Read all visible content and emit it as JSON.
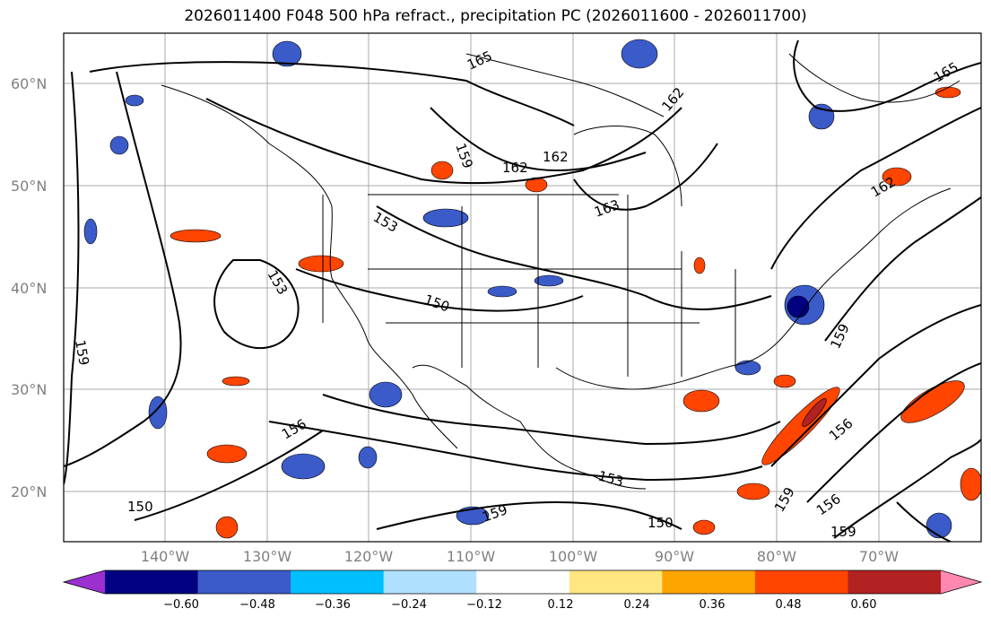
{
  "title": "2026011400 F048 500 hPa refract., precipitation PC (2026011600 - 2026011700)",
  "lat_labels": [
    "60°N",
    "50°N",
    "40°N",
    "30°N",
    "20°N"
  ],
  "lon_labels": [
    "140°W",
    "130°W",
    "120°W",
    "110°W",
    "100°W",
    "90°W",
    "80°W",
    "70°W"
  ],
  "contour_labels": [
    "165",
    "165",
    "162",
    "162",
    "162",
    "162",
    "163",
    "159",
    "153",
    "153",
    "150",
    "156",
    "159",
    "150",
    "159",
    "153",
    "150",
    "156",
    "156",
    "159",
    "159",
    "159"
  ],
  "colorbar": {
    "colors": [
      "#9b30d0",
      "#000080",
      "#3a5bc8",
      "#00bfff",
      "#b0e0ff",
      "#ffffff",
      "#ffe680",
      "#ffa500",
      "#ff4500",
      "#b22222",
      "#ff88b0"
    ],
    "tick_labels": [
      "−0.60",
      "−0.48",
      "−0.36",
      "−0.24",
      "−0.12",
      "0.12",
      "0.24",
      "0.36",
      "0.48",
      "0.60"
    ]
  }
}
